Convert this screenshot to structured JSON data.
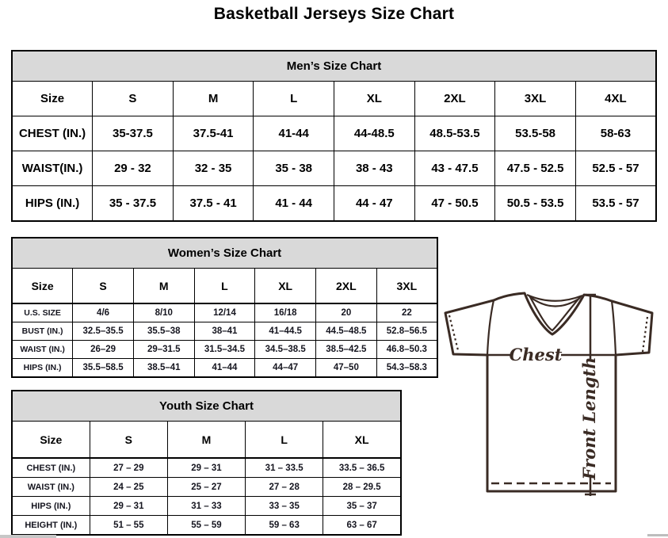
{
  "page_title": "Basketball Jerseys Size Chart",
  "tables": {
    "men": {
      "title": "Men’s Size Chart",
      "columns": [
        "Size",
        "S",
        "M",
        "L",
        "XL",
        "2XL",
        "3XL",
        "4XL"
      ],
      "rows": [
        {
          "label": "CHEST (IN.)",
          "values": [
            "35-37.5",
            "37.5-41",
            "41-44",
            "44-48.5",
            "48.5-53.5",
            "53.5-58",
            "58-63"
          ]
        },
        {
          "label": "WAIST(IN.)",
          "values": [
            "29 - 32",
            "32 - 35",
            "35 - 38",
            "38 - 43",
            "43 - 47.5",
            "47.5 - 52.5",
            "52.5 - 57"
          ]
        },
        {
          "label": "HIPS (IN.)",
          "values": [
            "35 - 37.5",
            "37.5 - 41",
            "41 - 44",
            "44 - 47",
            "47 - 50.5",
            "50.5 - 53.5",
            "53.5 - 57"
          ]
        }
      ]
    },
    "women": {
      "title": "Women’s Size Chart",
      "columns": [
        "Size",
        "S",
        "M",
        "L",
        "XL",
        "2XL",
        "3XL"
      ],
      "rows": [
        {
          "label": "U.S. SIZE",
          "values": [
            "4/6",
            "8/10",
            "12/14",
            "16/18",
            "20",
            "22"
          ]
        },
        {
          "label": "BUST (IN.)",
          "values": [
            "32.5–35.5",
            "35.5–38",
            "38–41",
            "41–44.5",
            "44.5–48.5",
            "52.8–56.5"
          ]
        },
        {
          "label": "WAIST (IN.)",
          "values": [
            "26–29",
            "29–31.5",
            "31.5–34.5",
            "34.5–38.5",
            "38.5–42.5",
            "46.8–50.3"
          ]
        },
        {
          "label": "HIPS (IN.)",
          "values": [
            "35.5–58.5",
            "38.5–41",
            "41–44",
            "44–47",
            "47–50",
            "54.3–58.3"
          ]
        }
      ]
    },
    "youth": {
      "title": "Youth Size Chart",
      "columns": [
        "Size",
        "S",
        "M",
        "L",
        "XL"
      ],
      "rows": [
        {
          "label": "CHEST (IN.)",
          "values": [
            "27 – 29",
            "29 – 31",
            "31 – 33.5",
            "33.5 – 36.5"
          ]
        },
        {
          "label": "WAIST (IN.)",
          "values": [
            "24 – 25",
            "25 – 27",
            "27 – 28",
            "28 – 29.5"
          ]
        },
        {
          "label": "HIPS (IN.)",
          "values": [
            "29 – 31",
            "31 – 33",
            "33 – 35",
            "35 – 37"
          ]
        },
        {
          "label": "HEIGHT (IN.)",
          "values": [
            "51 – 55",
            "55 – 59",
            "59 – 63",
            "63 – 67"
          ]
        }
      ]
    }
  },
  "diagram": {
    "chest_label": "Chest",
    "front_length_label": "Front Length"
  },
  "colors": {
    "table_header_bg": "#d9d9d9",
    "table_border": "#000000",
    "jersey_outline": "#3a2b24"
  }
}
